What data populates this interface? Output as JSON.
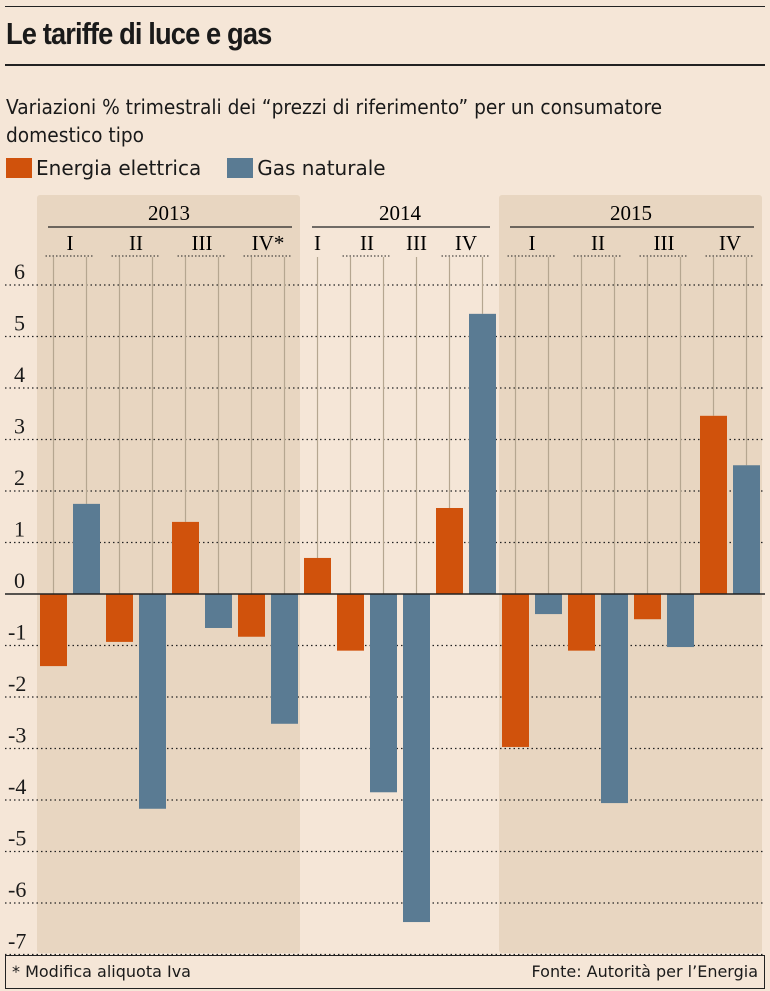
{
  "title": "Le tariffe di luce e gas",
  "subtitle": "Variazioni % trimestrali dei “prezzi di riferimento” per un consumatore domestico tipo",
  "footnote": "* Modifica aliquota Iva",
  "source": "Fonte: Autorità per l’Energia",
  "chart_data": {
    "type": "bar",
    "ylim": [
      -7,
      6
    ],
    "yticks": [
      6,
      5,
      4,
      3,
      2,
      1,
      0,
      -1,
      -2,
      -3,
      -4,
      -5,
      -6,
      -7
    ],
    "grid": true,
    "legend_position": "top-left",
    "series": [
      {
        "name": "Energia elettrica",
        "color": "#d0520c"
      },
      {
        "name": "Gas naturale",
        "color": "#5a7b93"
      }
    ],
    "years": [
      {
        "year": "2013",
        "shaded": true,
        "quarters": [
          {
            "label": "I",
            "values": [
              -1.4,
              1.75
            ]
          },
          {
            "label": "II",
            "values": [
              -0.93,
              -4.17
            ]
          },
          {
            "label": "III",
            "values": [
              1.4,
              -0.66
            ]
          },
          {
            "label": "IV*",
            "values": [
              -0.83,
              -2.52
            ]
          }
        ]
      },
      {
        "year": "2014",
        "shaded": false,
        "quarters": [
          {
            "label": "I",
            "values": [
              0.7,
              null
            ]
          },
          {
            "label": "II",
            "values": [
              -1.1,
              -3.85
            ]
          },
          {
            "label": "III",
            "values": [
              null,
              -6.37
            ]
          },
          {
            "label": "IV",
            "values": [
              1.67,
              5.44
            ]
          }
        ]
      },
      {
        "year": "2015",
        "shaded": true,
        "quarters": [
          {
            "label": "I",
            "values": [
              -2.97,
              -0.39
            ]
          },
          {
            "label": "II",
            "values": [
              -1.1,
              -4.06
            ]
          },
          {
            "label": "III",
            "values": [
              -0.49,
              -1.03
            ]
          },
          {
            "label": "IV",
            "values": [
              3.46,
              2.5
            ]
          }
        ]
      }
    ]
  }
}
